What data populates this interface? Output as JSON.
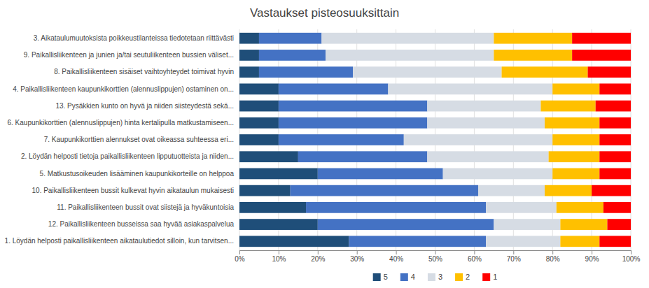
{
  "chart_data": {
    "type": "bar",
    "orientation": "horizontal",
    "stacked": true,
    "title": "Vastaukset pisteosuuksittain",
    "categories": [
      "3. Aikataulumuutoksista poikkeustilanteissa tiedotetaan riittävästi",
      "9. Paikallisliikenteen ja junien ja/tai seutuliikenteen bussien väliset...",
      "8. Paikallisliikenteen sisäiset vaihtoyhteydet toimivat hyvin",
      "4. Paikallisliikenteen kaupunkikorttien (alennuslippujen) ostaminen on...",
      "13. Pysäkkien kunto on hyvä ja niiden siisteydestä sekä...",
      "6. Kaupunkikorttien (alennuslippujen) hinta kertalipulla matkustamiseen...",
      "7. Kaupunkikorttien alennukset ovat oikeassa suhteessa eri...",
      "2. Löydän helposti tietoja paikallisliikenteen lipputuotteista ja niiden...",
      "5. Matkustusoikeuden lisääminen kaupunkikorteille on helppoa",
      "10. Paikallisliikenteen bussit kulkevat hyvin aikataulun mukaisesti",
      "11. Paikallisliikenteen bussit ovat siistejä ja hyväkuntoisia",
      "12. Paikallisliikenteen busseissa saa hyvää asiakaspalvelua",
      "1. Löydän helposti paikallisliikenteen aikataulutiedot silloin, kun tarvitsen..."
    ],
    "series": [
      {
        "name": "5",
        "color": "#1F4E79",
        "values": [
          5,
          5,
          5,
          10,
          10,
          10,
          10,
          15,
          20,
          13,
          17,
          20,
          28
        ]
      },
      {
        "name": "4",
        "color": "#4472C4",
        "values": [
          16,
          17,
          24,
          28,
          38,
          38,
          32,
          33,
          32,
          48,
          46,
          45,
          35
        ]
      },
      {
        "name": "3",
        "color": "#D6DCE4",
        "values": [
          44,
          43,
          38,
          42,
          29,
          30,
          38,
          31,
          28,
          17,
          18,
          17,
          19
        ]
      },
      {
        "name": "2",
        "color": "#FFC000",
        "values": [
          20,
          20,
          22,
          12,
          14,
          14,
          12,
          13,
          12,
          12,
          12,
          12,
          10
        ]
      },
      {
        "name": "1",
        "color": "#FF0000",
        "values": [
          15,
          15,
          11,
          8,
          9,
          8,
          8,
          8,
          8,
          10,
          7,
          6,
          8
        ]
      }
    ],
    "xlim": [
      0,
      100
    ],
    "xticks": [
      {
        "value": 0,
        "label": "0%"
      },
      {
        "value": 10,
        "label": "10%"
      },
      {
        "value": 20,
        "label": "20%"
      },
      {
        "value": 30,
        "label": "30%"
      },
      {
        "value": 40,
        "label": "40%"
      },
      {
        "value": 50,
        "label": "50%"
      },
      {
        "value": 60,
        "label": "60%"
      },
      {
        "value": 70,
        "label": "70%"
      },
      {
        "value": 80,
        "label": "80%"
      },
      {
        "value": 90,
        "label": "90%"
      },
      {
        "value": 100,
        "label": "100%"
      }
    ],
    "grid": true,
    "legend": "bottom"
  }
}
